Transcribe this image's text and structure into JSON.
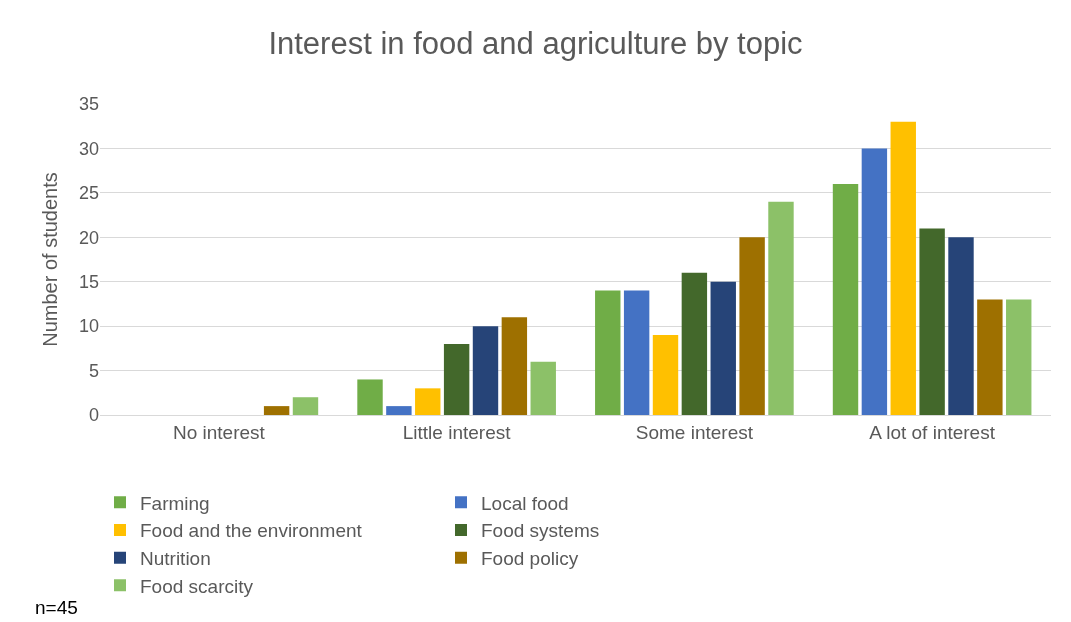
{
  "chart_data": {
    "type": "bar",
    "title": "Interest in food and agriculture by topic",
    "ylabel": "Number of students",
    "categories": [
      "No interest",
      "Little interest",
      "Some interest",
      "A lot of interest"
    ],
    "series": [
      {
        "name": "Farming",
        "color": "#70ad47",
        "values": [
          0,
          4,
          14,
          26
        ]
      },
      {
        "name": "Local food",
        "color": "#4472c4",
        "values": [
          0,
          1,
          14,
          30
        ]
      },
      {
        "name": "Food and the environment",
        "color": "#ffc000",
        "values": [
          0,
          3,
          9,
          33
        ]
      },
      {
        "name": "Food systems",
        "color": "#43682b",
        "values": [
          0,
          8,
          16,
          21
        ]
      },
      {
        "name": "Nutrition",
        "color": "#264478",
        "values": [
          0,
          10,
          15,
          20
        ]
      },
      {
        "name": "Food policy",
        "color": "#9e7000",
        "values": [
          1,
          11,
          20,
          13
        ]
      },
      {
        "name": "Food scarcity",
        "color": "#8cc168",
        "values": [
          2,
          6,
          24,
          13
        ]
      }
    ],
    "ylim": [
      0,
      35
    ],
    "yticks": [
      0,
      5,
      10,
      15,
      20,
      25,
      30,
      35
    ],
    "grid": "y",
    "legend": "bottom",
    "annotations": [
      "n=45"
    ]
  }
}
